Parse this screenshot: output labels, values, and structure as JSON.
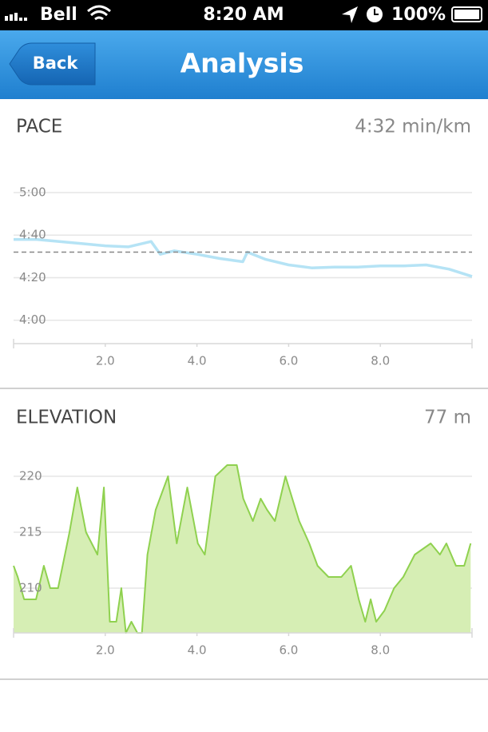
{
  "status_bar": {
    "carrier": "Bell",
    "time": "8:20 AM",
    "battery": "100%"
  },
  "nav_bar": {
    "back": "Back",
    "title": "Analysis"
  },
  "chart_data": [
    {
      "type": "line",
      "title": "PACE",
      "summary": "4:32 min/km",
      "x": [
        0,
        0.5,
        1.0,
        1.5,
        2.0,
        2.5,
        3.0,
        3.2,
        3.5,
        4.0,
        4.5,
        5.0,
        5.1,
        5.5,
        6.0,
        6.5,
        7.0,
        7.5,
        8.0,
        8.5,
        9.0,
        9.5,
        10
      ],
      "series": [
        {
          "color": "#b5e3f5",
          "values": [
            278,
            278,
            277,
            276,
            275,
            274.5,
            277,
            271,
            272.6,
            271,
            269,
            267.5,
            272,
            268.6,
            266,
            264.6,
            265,
            265,
            265.5,
            265.5,
            266,
            264,
            260.6
          ]
        }
      ],
      "average": 272,
      "average_color": "#888888",
      "xlim": [
        0,
        10
      ],
      "xticks": [
        {
          "value": 2,
          "label": "2.0"
        },
        {
          "value": 4,
          "label": "4.0"
        },
        {
          "value": 6,
          "label": "6.0"
        },
        {
          "value": 8,
          "label": "8.0"
        }
      ],
      "ylim": [
        229,
        305
      ],
      "yticks": [
        {
          "value": 300,
          "label": "5:00"
        },
        {
          "value": 280,
          "label": "4:40"
        },
        {
          "value": 260,
          "label": "4:20"
        },
        {
          "value": 240,
          "label": "4:00"
        }
      ],
      "grid": true
    },
    {
      "type": "area",
      "title": "ELEVATION",
      "summary": "77 m",
      "x": [
        0,
        0.09,
        0.23,
        0.49,
        0.66,
        0.8,
        0.97,
        1.22,
        1.39,
        1.58,
        1.83,
        1.97,
        2.1,
        2.24,
        2.35,
        2.45,
        2.57,
        2.7,
        2.8,
        2.92,
        3.1,
        3.37,
        3.56,
        3.79,
        4.02,
        4.17,
        4.4,
        4.66,
        4.87,
        5.01,
        5.22,
        5.39,
        5.53,
        5.7,
        5.93,
        6.23,
        6.45,
        6.63,
        6.87,
        7.15,
        7.36,
        7.53,
        7.67,
        7.79,
        7.91,
        8.09,
        8.3,
        8.5,
        8.75,
        9.1,
        9.3,
        9.44,
        9.65,
        9.83,
        9.97
      ],
      "series": [
        {
          "color": "#8fd14f",
          "fill": "#d6eeb4",
          "values": [
            212,
            211,
            209,
            209,
            212,
            210,
            210,
            215,
            219,
            215,
            213,
            219,
            207,
            207,
            210,
            206,
            207,
            206,
            206,
            213,
            217,
            220,
            214,
            219,
            214,
            213,
            220,
            221,
            221,
            218,
            216,
            218,
            217,
            216,
            220,
            216,
            214,
            212,
            211,
            211,
            212,
            209,
            207,
            209,
            207,
            208,
            210,
            211,
            213,
            214,
            213,
            214,
            212,
            212,
            214
          ]
        }
      ],
      "xlim": [
        0,
        10
      ],
      "xticks": [
        {
          "value": 2,
          "label": "2.0"
        },
        {
          "value": 4,
          "label": "4.0"
        },
        {
          "value": 6,
          "label": "6.0"
        },
        {
          "value": 8,
          "label": "8.0"
        }
      ],
      "ylim": [
        206,
        222
      ],
      "yticks": [
        220,
        215,
        210
      ],
      "grid": true
    }
  ]
}
